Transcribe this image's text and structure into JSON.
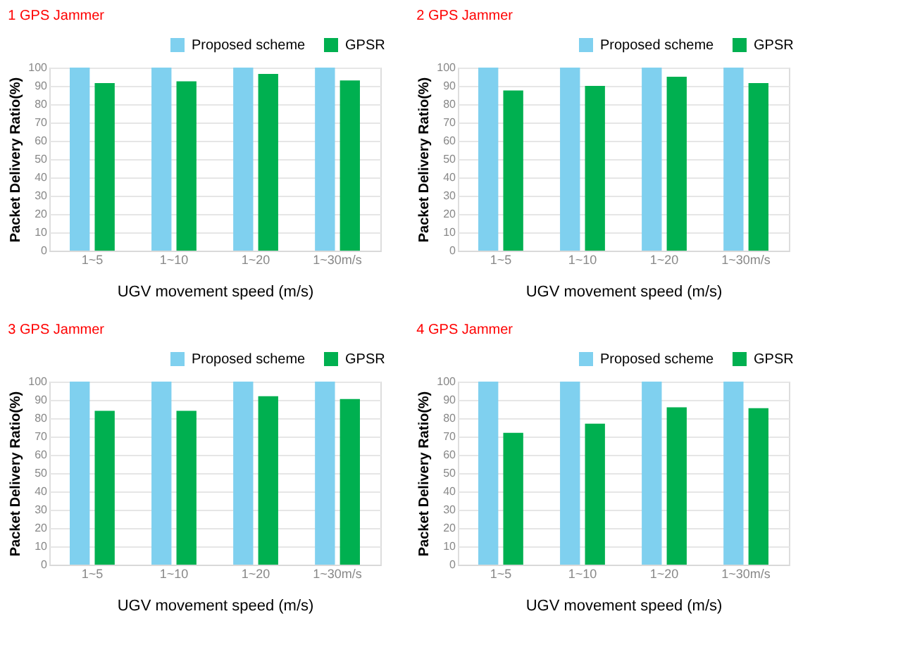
{
  "chart_data": [
    {
      "type": "bar",
      "title": "1 GPS Jammer",
      "xlabel": "UGV movement speed (m/s)",
      "ylabel": "Packet Delivery Ratio(%)",
      "categories": [
        "1~5",
        "1~10",
        "1~20",
        "1~30m/s"
      ],
      "ylim": [
        0,
        100
      ],
      "yticks": [
        0,
        10,
        20,
        30,
        40,
        50,
        60,
        70,
        80,
        90,
        100
      ],
      "grid": "y",
      "legend": "top right",
      "series": [
        {
          "name": "Proposed scheme",
          "color": "#7fd0ef",
          "values": [
            100,
            100,
            100,
            100
          ]
        },
        {
          "name": "GPSR",
          "color": "#00b050",
          "values": [
            91.5,
            92.5,
            96.5,
            93
          ]
        }
      ]
    },
    {
      "type": "bar",
      "title": "2 GPS Jammer",
      "xlabel": "UGV movement speed (m/s)",
      "ylabel": "Packet Delivery Ratio(%)",
      "categories": [
        "1~5",
        "1~10",
        "1~20",
        "1~30m/s"
      ],
      "ylim": [
        0,
        100
      ],
      "yticks": [
        0,
        10,
        20,
        30,
        40,
        50,
        60,
        70,
        80,
        90,
        100
      ],
      "grid": "y",
      "legend": "top right",
      "series": [
        {
          "name": "Proposed scheme",
          "color": "#7fd0ef",
          "values": [
            100,
            100,
            100,
            100
          ]
        },
        {
          "name": "GPSR",
          "color": "#00b050",
          "values": [
            87.5,
            90,
            95,
            91.5
          ]
        }
      ]
    },
    {
      "type": "bar",
      "title": "3 GPS Jammer",
      "xlabel": "UGV movement speed (m/s)",
      "ylabel": "Packet Delivery Ratio(%)",
      "categories": [
        "1~5",
        "1~10",
        "1~20",
        "1~30m/s"
      ],
      "ylim": [
        0,
        100
      ],
      "yticks": [
        0,
        10,
        20,
        30,
        40,
        50,
        60,
        70,
        80,
        90,
        100
      ],
      "grid": "y",
      "legend": "top right",
      "series": [
        {
          "name": "Proposed scheme",
          "color": "#7fd0ef",
          "values": [
            100,
            100,
            100,
            100
          ]
        },
        {
          "name": "GPSR",
          "color": "#00b050",
          "values": [
            84,
            84,
            92,
            90.5
          ]
        }
      ]
    },
    {
      "type": "bar",
      "title": "4 GPS Jammer",
      "xlabel": "UGV movement speed (m/s)",
      "ylabel": "Packet Delivery Ratio(%)",
      "categories": [
        "1~5",
        "1~10",
        "1~20",
        "1~30m/s"
      ],
      "ylim": [
        0,
        100
      ],
      "yticks": [
        0,
        10,
        20,
        30,
        40,
        50,
        60,
        70,
        80,
        90,
        100
      ],
      "grid": "y",
      "legend": "top right",
      "series": [
        {
          "name": "Proposed scheme",
          "color": "#7fd0ef",
          "values": [
            100,
            100,
            100,
            100
          ]
        },
        {
          "name": "GPSR",
          "color": "#00b050",
          "values": [
            72,
            77,
            86,
            85.5
          ]
        }
      ]
    }
  ]
}
